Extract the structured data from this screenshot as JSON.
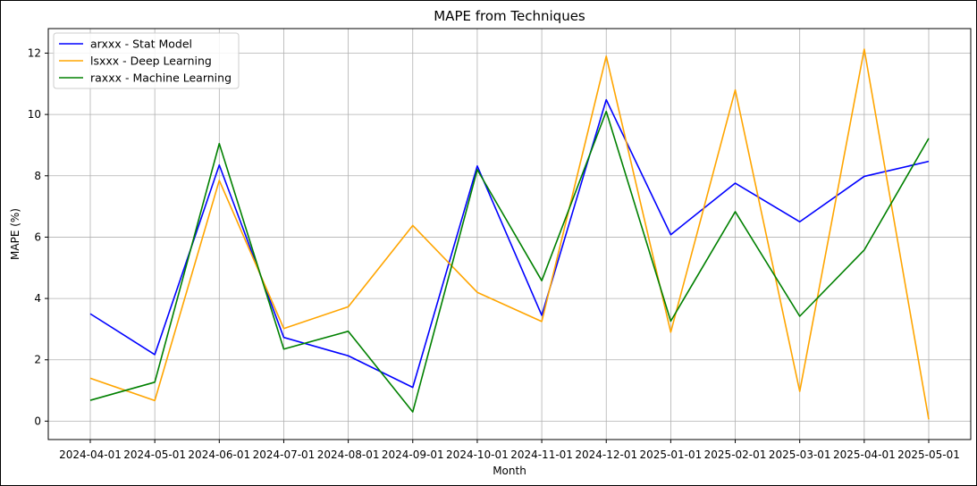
{
  "chart_data": {
    "type": "line",
    "title": "MAPE from Techniques",
    "xlabel": "Month",
    "ylabel": "MAPE (%)",
    "x": [
      "2024-04-01",
      "2024-05-01",
      "2024-06-01",
      "2024-07-01",
      "2024-08-01",
      "2024-09-01",
      "2024-10-01",
      "2024-11-01",
      "2024-12-01",
      "2025-01-01",
      "2025-02-01",
      "2025-03-01",
      "2025-04-01",
      "2025-05-01"
    ],
    "ylim": [
      -0.6,
      12.8
    ],
    "yticks": [
      0,
      2,
      4,
      6,
      8,
      10,
      12
    ],
    "grid": true,
    "legend_position": "top-left",
    "series": [
      {
        "name": "arxxx - Stat Model",
        "color": "#0000ff",
        "values": [
          3.5,
          2.17,
          8.35,
          2.73,
          2.13,
          1.1,
          8.32,
          3.45,
          10.48,
          6.08,
          7.76,
          6.5,
          7.98,
          8.47
        ]
      },
      {
        "name": "lsxxx - Deep Learning",
        "color": "#ffa500",
        "values": [
          1.4,
          0.67,
          7.85,
          3.02,
          3.73,
          6.38,
          4.2,
          3.25,
          11.9,
          2.9,
          10.8,
          0.97,
          12.13,
          0.06
        ]
      },
      {
        "name": "raxxx - Machine Learning",
        "color": "#008000",
        "values": [
          0.68,
          1.27,
          9.05,
          2.35,
          2.93,
          0.3,
          8.2,
          4.58,
          10.1,
          3.26,
          6.83,
          3.42,
          5.58,
          9.22
        ]
      }
    ]
  }
}
